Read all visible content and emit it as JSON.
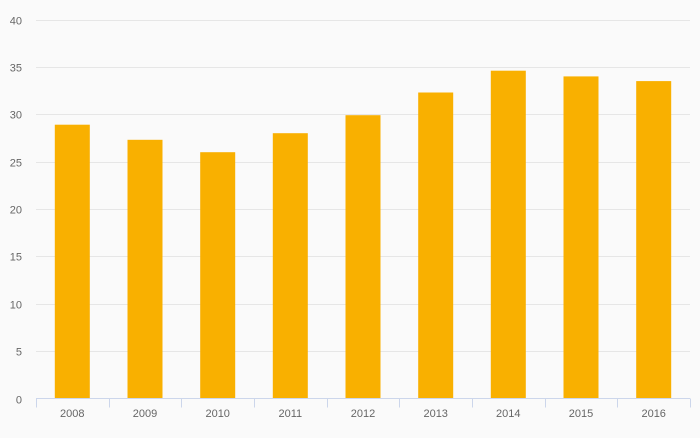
{
  "chart_data": {
    "type": "bar",
    "title": "",
    "xlabel": "",
    "ylabel": "",
    "categories": [
      "2008",
      "2009",
      "2010",
      "2011",
      "2012",
      "2013",
      "2014",
      "2015",
      "2016"
    ],
    "values": [
      28.9,
      27.3,
      26.0,
      28.0,
      29.9,
      32.3,
      34.6,
      34.0,
      33.5
    ],
    "ylim": [
      0,
      40
    ],
    "yticks": [
      0,
      5,
      10,
      15,
      20,
      25,
      30,
      35,
      40
    ],
    "grid": true,
    "legend": "none",
    "colors": {
      "bar": "#f9b000",
      "grid": "#e6e6e6",
      "axis": "#ccd6eb",
      "text": "#666666"
    }
  }
}
